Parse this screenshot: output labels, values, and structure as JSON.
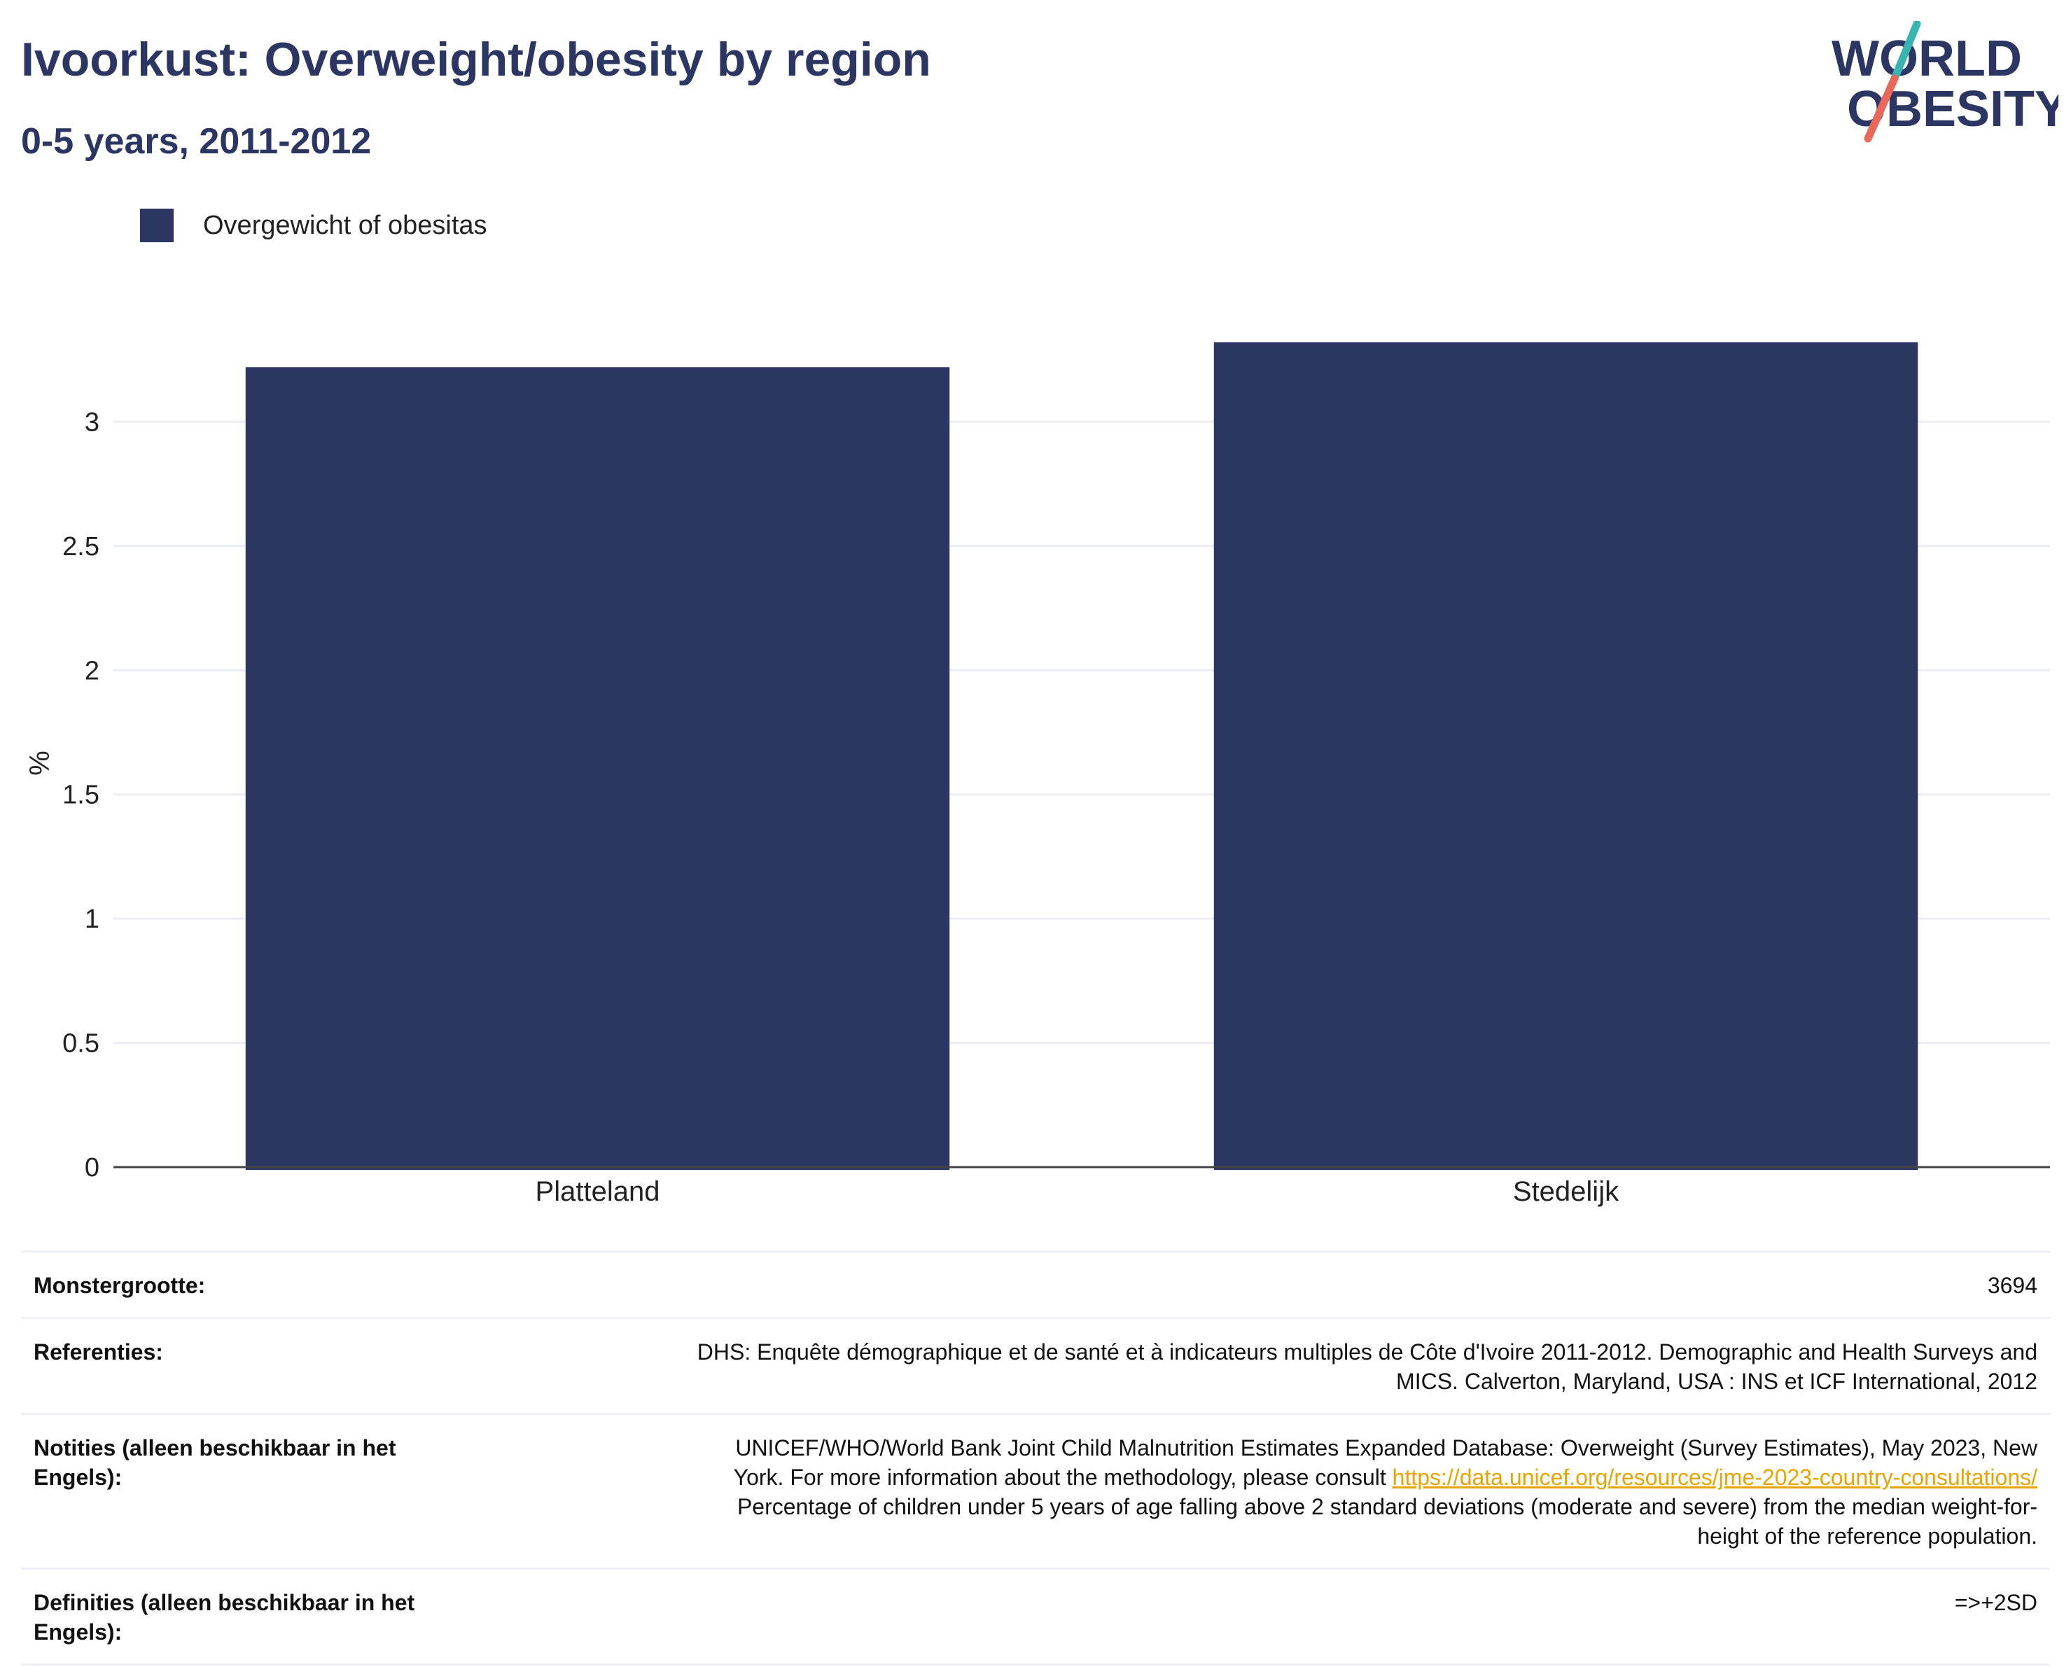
{
  "header": {
    "title": "Ivoorkust: Overweight/obesity by region",
    "subtitle": "0-5 years, 2011-2012"
  },
  "logo": {
    "line1": "WORLD",
    "line2": "OBESITY",
    "colors": {
      "navy": "#2b3663",
      "teal": "#3ab4b0",
      "coral": "#e8685a"
    }
  },
  "chart_data": {
    "type": "bar",
    "categories": [
      "Platteland",
      "Stedelijk"
    ],
    "series": [
      {
        "name": "Overgewicht of obesitas",
        "values": [
          3.22,
          3.32
        ],
        "color": "#2b3663"
      }
    ],
    "title": "Ivoorkust: Overweight/obesity by region",
    "subtitle": "0-5 years, 2011-2012",
    "xlabel": "",
    "ylabel": "%",
    "ylim": [
      0,
      3.5
    ],
    "yticks": [
      0,
      0.5,
      1,
      1.5,
      2,
      2.5,
      3
    ],
    "ytick_labels": [
      "0",
      "0.5",
      "1",
      "1.5",
      "2",
      "2.5",
      "3"
    ],
    "grid": true,
    "legend_position": "top-left"
  },
  "info_table": {
    "sample_size": {
      "label": "Monstergrootte:",
      "value": "3694"
    },
    "references": {
      "label": "Referenties:",
      "line1": "DHS: Enquête démographique et de santé et à indicateurs multiples de Côte d'Ivoire 2011-2012. Demographic and Health Surveys and",
      "line2": "MICS. Calverton, Maryland, USA : INS et ICF International, 2012"
    },
    "notes": {
      "label": "Notities (alleen beschikbaar in het Engels):",
      "line1": "UNICEF/WHO/World Bank Joint Child Malnutrition Estimates Expanded Database: Overweight (Survey Estimates), May 2023, New",
      "line2_prefix": "York. For more information about the methodology, please consult ",
      "link": "https://data.unicef.org/resources/jme-2023-country-consultations/",
      "line3": "Percentage of children under 5 years of age falling above 2 standard deviations (moderate and severe) from the median weight-for-",
      "line4": "height of the reference population."
    },
    "definitions": {
      "label": "Definities (alleen beschikbaar in het Engels):",
      "value": "=>+2SD"
    }
  }
}
